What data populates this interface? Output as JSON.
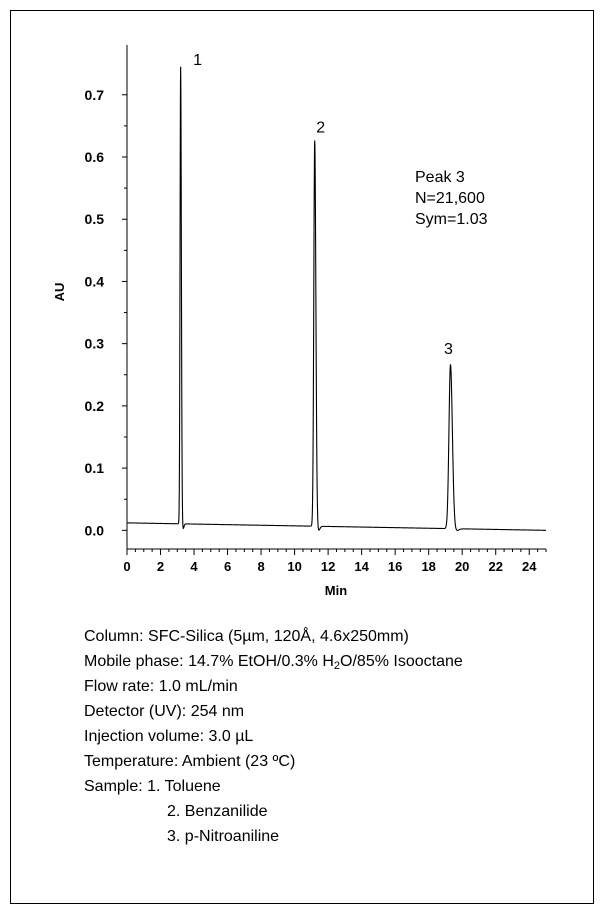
{
  "chart_data": {
    "type": "line",
    "xlabel": "Min",
    "ylabel": "AU",
    "xlim": [
      0,
      25
    ],
    "ylim": [
      -0.03,
      0.78
    ],
    "x_ticks": [
      0,
      2,
      4,
      6,
      8,
      10,
      12,
      14,
      16,
      18,
      20,
      22,
      24
    ],
    "y_ticks": [
      0.0,
      0.1,
      0.2,
      0.3,
      0.4,
      0.5,
      0.6,
      0.7
    ],
    "y_tick_labels": [
      "0.0",
      "0.1",
      "0.2",
      "0.3",
      "0.4",
      "0.5",
      "0.6",
      "0.7"
    ],
    "grid": false,
    "baseline": {
      "start": 0.012,
      "end": 0.0
    },
    "peaks": [
      {
        "label": "1",
        "compound": "Toluene",
        "time": 3.2,
        "height": 0.735,
        "width": 0.035
      },
      {
        "label": "2",
        "compound": "Benzanilide",
        "time": 11.2,
        "height": 0.62,
        "width": 0.055
      },
      {
        "label": "3",
        "compound": "p-Nitroaniline",
        "time": 19.3,
        "height": 0.264,
        "width": 0.09
      }
    ],
    "annotation": [
      "Peak 3",
      "N=21,600",
      "Sym=1.03"
    ]
  },
  "conditions": {
    "column": "Column: SFC-Silica (5µm, 120Å, 4.6x250mm)",
    "mobile_phase_prefix": "Mobile phase: 14.7% EtOH/0.3% H",
    "mobile_phase_sub": "2",
    "mobile_phase_suffix": "O/85% Isooctane",
    "flow_rate": "Flow rate: 1.0 mL/min",
    "detector": "Detector (UV): 254 nm",
    "injection": "Injection volume: 3.0 µL",
    "temperature": "Temperature: Ambient (23 ºC)",
    "sample_heading": "Sample: 1. Toluene",
    "sample_2": "2. Benzanilide",
    "sample_3": "3. p-Nitroaniline"
  }
}
